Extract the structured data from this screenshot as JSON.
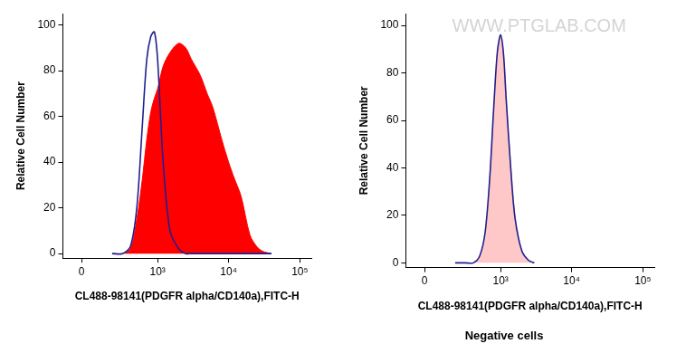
{
  "chart_data": [
    {
      "type": "line",
      "x_label": "CL488-98141(PDGFR alpha/CD140a),FITC-H",
      "y_label": "Relative Cell Number",
      "x": [
        200,
        300,
        400,
        500,
        600,
        700,
        800,
        900,
        1000,
        1200,
        1500,
        2000,
        2500,
        3000,
        4000,
        5000,
        6000,
        8000,
        10000,
        12000,
        15000,
        20000,
        25000,
        30000,
        40000
      ],
      "series": [
        {
          "type": "area",
          "color": "#ff0000",
          "values": [
            0,
            0,
            2,
            15,
            32,
            50,
            62,
            68,
            72,
            82,
            88,
            92,
            90,
            85,
            78,
            70,
            64,
            50,
            40,
            33,
            25,
            8,
            3,
            1,
            0
          ]
        },
        {
          "type": "line",
          "color": "#1f1f8f",
          "values": [
            0,
            0,
            3,
            20,
            55,
            85,
            95,
            97,
            85,
            40,
            10,
            2,
            0,
            0,
            0,
            0,
            0,
            0,
            0,
            0,
            0,
            0,
            0,
            0,
            0
          ]
        }
      ],
      "xlim": [
        -110,
        145000
      ],
      "xticks": [
        0,
        {
          "value": 1000,
          "label": "10³"
        },
        {
          "value": 10000,
          "label": "10⁴"
        },
        {
          "value": 100000,
          "label": "10⁵"
        }
      ],
      "ylim": [
        -2,
        105
      ],
      "yticks": [
        0,
        20,
        40,
        60,
        80,
        100
      ],
      "grid": false
    },
    {
      "type": "line",
      "subtitle": "Negative cells",
      "annotations": [
        "WWW.PTGLAB.COM"
      ],
      "x_label": "CL488-98141(PDGFR alpha/CD140a),FITC-H",
      "y_label": "Relative Cell Number",
      "x": [
        200,
        300,
        400,
        500,
        600,
        700,
        800,
        900,
        1000,
        1100,
        1200,
        1400,
        1600,
        2000,
        2500,
        3000
      ],
      "series": [
        {
          "type": "area",
          "color": "#ffc8c8",
          "values": [
            0,
            0,
            0,
            3,
            12,
            35,
            65,
            88,
            95,
            88,
            70,
            40,
            20,
            5,
            1,
            0
          ]
        },
        {
          "type": "line",
          "color": "#1f1f8f",
          "values": [
            0,
            0,
            0,
            3,
            13,
            36,
            66,
            89,
            96,
            88,
            69,
            39,
            19,
            5,
            1,
            0
          ]
        }
      ],
      "xlim": [
        -110,
        145000
      ],
      "xticks": [
        0,
        {
          "value": 1000,
          "label": "10³"
        },
        {
          "value": 10000,
          "label": "10⁴"
        },
        {
          "value": 100000,
          "label": "10⁵"
        }
      ],
      "ylim": [
        -2,
        105
      ],
      "yticks": [
        0,
        20,
        40,
        60,
        80,
        100
      ],
      "grid": false
    }
  ]
}
